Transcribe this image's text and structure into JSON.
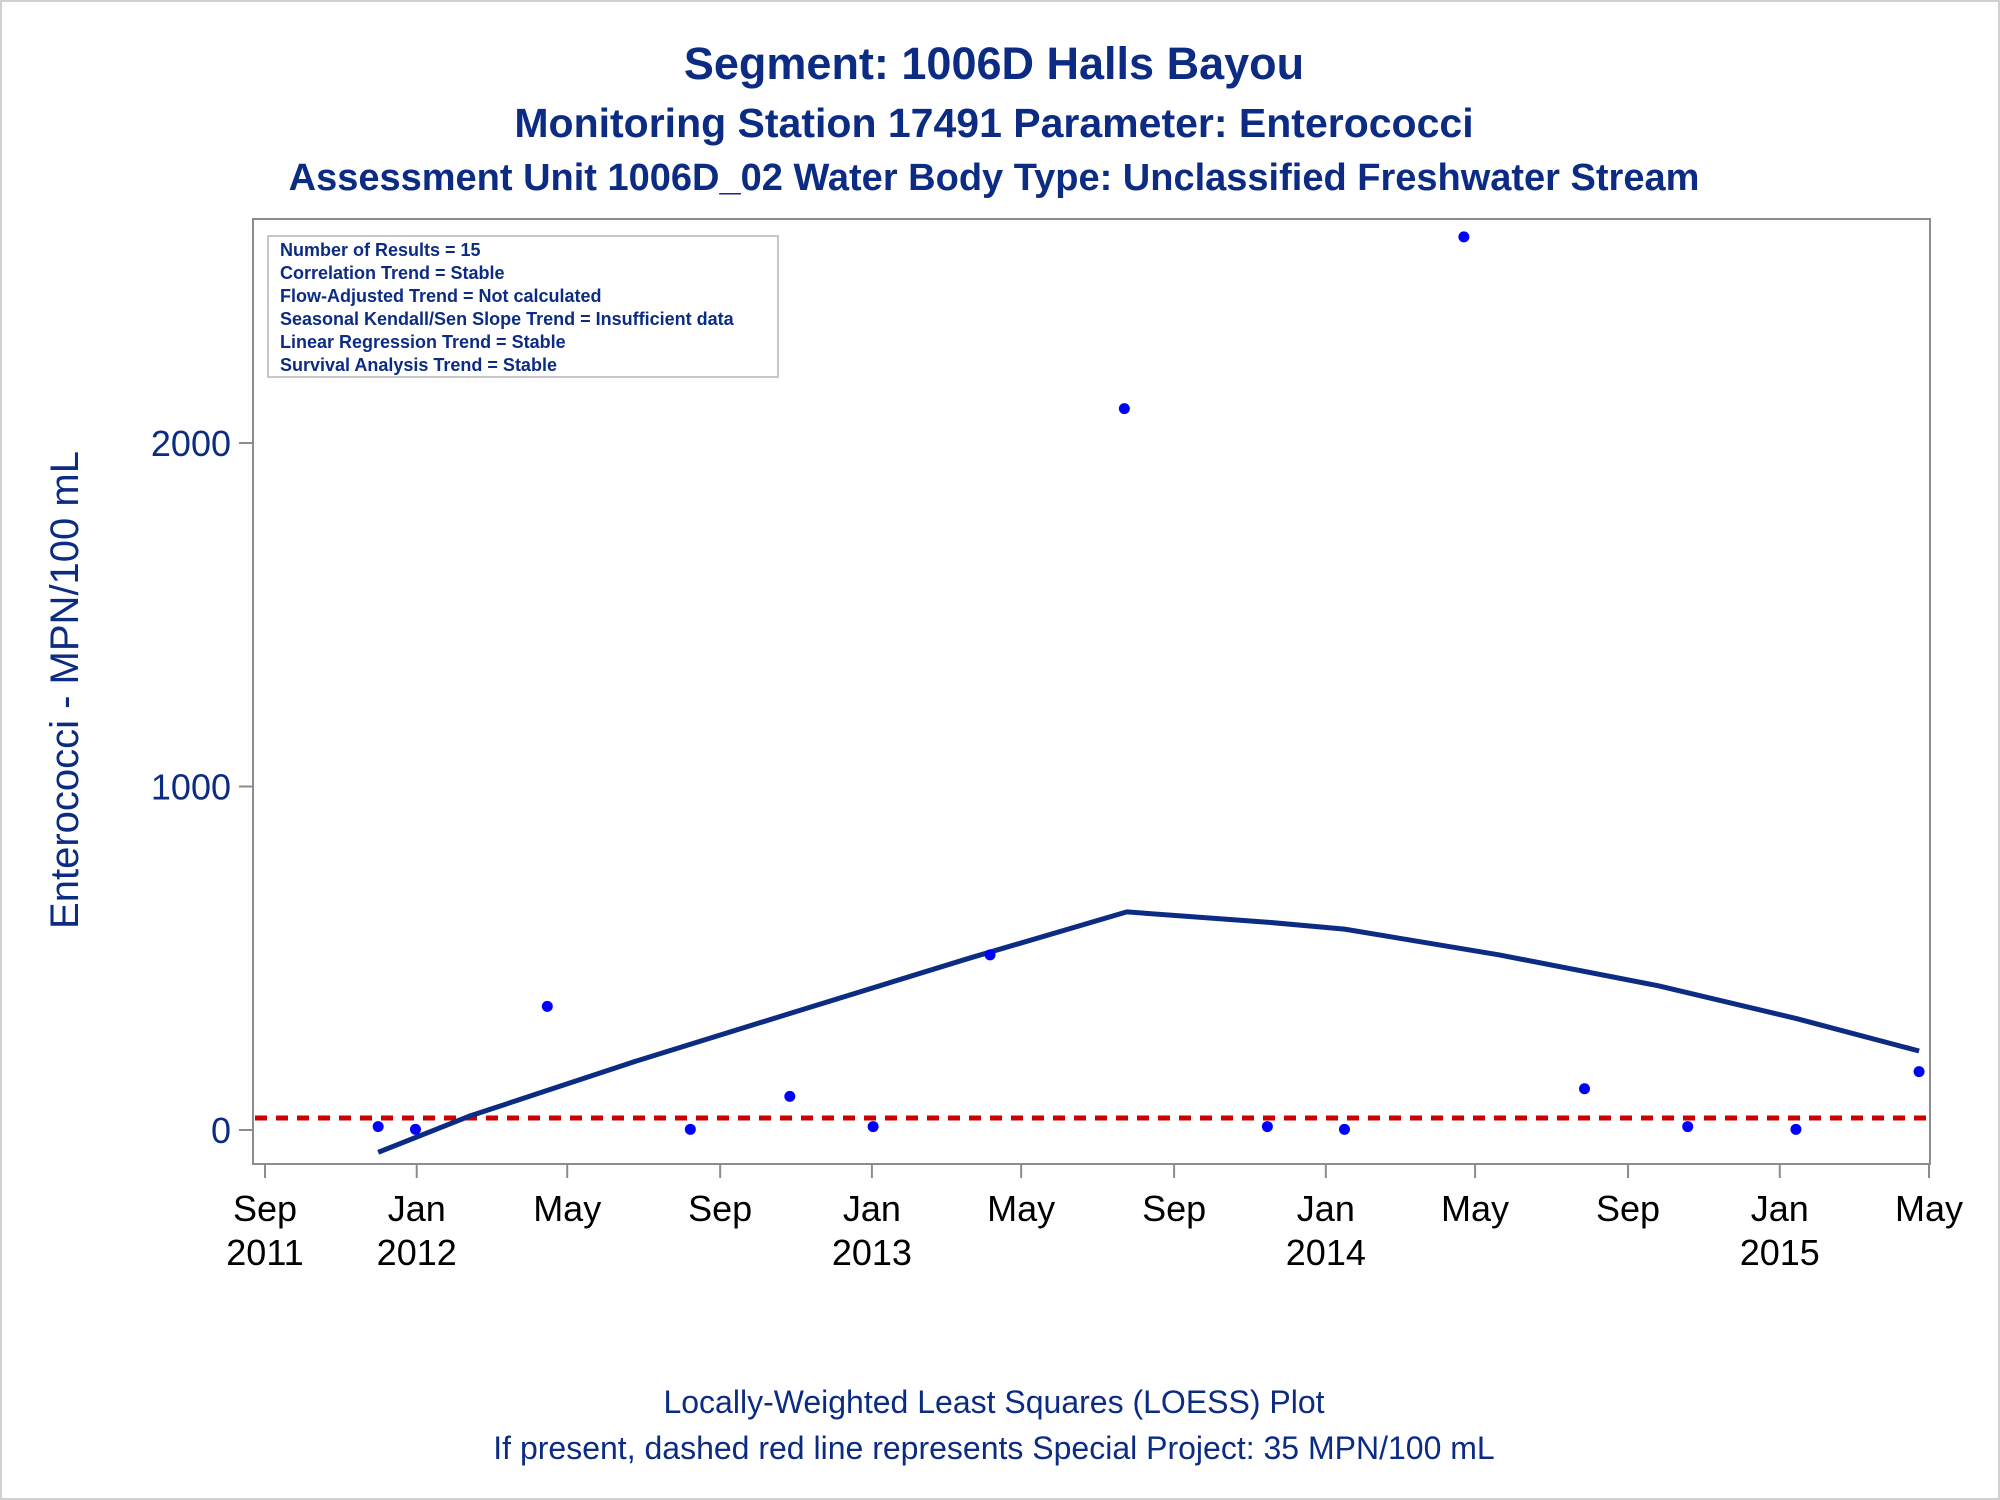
{
  "header": {
    "title": "Segment: 1006D  Halls Bayou",
    "subtitle": "Monitoring Station 17491 Parameter: Enterococci",
    "subtitle2": "Assessment Unit 1006D_02   Water Body Type: Unclassified Freshwater Stream"
  },
  "info_box": [
    "Number of Results = 15",
    "Correlation Trend = Stable",
    "Flow-Adjusted Trend = Not calculated",
    "Seasonal Kendall/Sen Slope Trend = Insufficient data",
    "Linear Regression Trend = Stable",
    "Survival Analysis Trend = Stable"
  ],
  "footer": {
    "line1": "Locally-Weighted Least Squares (LOESS) Plot",
    "line2": "If present, dashed red line represents Special Project: 35 MPN/100 mL"
  },
  "colors": {
    "text": "#0c2c84",
    "points": "#0000ff",
    "loess": "#0c2c84",
    "threshold": "#cc0000",
    "axis": "#8c8c8c"
  },
  "chart_data": {
    "type": "scatter",
    "title": "Segment: 1006D  Halls Bayou",
    "xlabel": "",
    "ylabel": "Enterococci - MPN/100 mL",
    "xlim": [
      "2011-09-01",
      "2015-05-01"
    ],
    "ylim": [
      -100,
      2650
    ],
    "x_ticks": [
      {
        "date": "2011-09-01",
        "label": [
          "Sep",
          "2011"
        ]
      },
      {
        "date": "2012-01-01",
        "label": [
          "Jan",
          "2012"
        ]
      },
      {
        "date": "2012-05-01",
        "label": [
          "May",
          ""
        ]
      },
      {
        "date": "2012-09-01",
        "label": [
          "Sep",
          ""
        ]
      },
      {
        "date": "2013-01-01",
        "label": [
          "Jan",
          "2013"
        ]
      },
      {
        "date": "2013-05-01",
        "label": [
          "May",
          ""
        ]
      },
      {
        "date": "2013-09-01",
        "label": [
          "Sep",
          ""
        ]
      },
      {
        "date": "2014-01-01",
        "label": [
          "Jan",
          "2014"
        ]
      },
      {
        "date": "2014-05-01",
        "label": [
          "May",
          ""
        ]
      },
      {
        "date": "2014-09-01",
        "label": [
          "Sep",
          ""
        ]
      },
      {
        "date": "2015-01-01",
        "label": [
          "Jan",
          "2015"
        ]
      },
      {
        "date": "2015-05-01",
        "label": [
          "May",
          ""
        ]
      }
    ],
    "y_ticks": [
      0,
      1000,
      2000
    ],
    "points": [
      {
        "x": "2011-12-01",
        "y": 10
      },
      {
        "x": "2011-12-31",
        "y": 2
      },
      {
        "x": "2012-04-15",
        "y": 360
      },
      {
        "x": "2012-08-08",
        "y": 2
      },
      {
        "x": "2012-10-27",
        "y": 98
      },
      {
        "x": "2013-01-02",
        "y": 10
      },
      {
        "x": "2013-04-06",
        "y": 510
      },
      {
        "x": "2013-07-23",
        "y": 2100
      },
      {
        "x": "2013-11-15",
        "y": 10
      },
      {
        "x": "2014-01-16",
        "y": 2
      },
      {
        "x": "2014-04-22",
        "y": 2600
      },
      {
        "x": "2014-07-28",
        "y": 120
      },
      {
        "x": "2014-10-19",
        "y": 10
      },
      {
        "x": "2015-01-14",
        "y": 2
      },
      {
        "x": "2015-04-23",
        "y": 170
      }
    ],
    "loess": [
      {
        "x": "2011-12-01",
        "y": -65
      },
      {
        "x": "2012-02-12",
        "y": 40
      },
      {
        "x": "2012-06-25",
        "y": 200
      },
      {
        "x": "2012-11-10",
        "y": 355
      },
      {
        "x": "2013-03-20",
        "y": 500
      },
      {
        "x": "2013-07-25",
        "y": 635
      },
      {
        "x": "2013-11-15",
        "y": 605
      },
      {
        "x": "2014-01-16",
        "y": 585
      },
      {
        "x": "2014-05-20",
        "y": 510
      },
      {
        "x": "2014-09-25",
        "y": 420
      },
      {
        "x": "2015-01-14",
        "y": 325
      },
      {
        "x": "2015-04-23",
        "y": 230
      }
    ],
    "threshold": {
      "y": 35,
      "style": "dashed"
    },
    "grid": false
  }
}
